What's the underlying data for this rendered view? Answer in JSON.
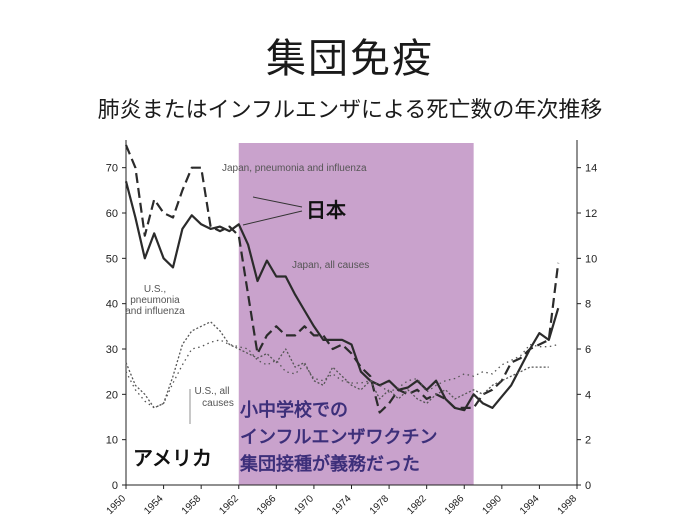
{
  "title": "集団免疫",
  "subtitle": "肺炎またはインフルエンザによる死亡数の年次推移",
  "colors": {
    "shade": "#c9a2cc",
    "japan": "#2b2b2b",
    "us": "#555555",
    "note_text": "#3d2f7a"
  },
  "annotations": {
    "japan_pi": "Japan, pneumonia and influenza",
    "japan_all": "Japan, all causes",
    "us_pi": [
      "U.S.,",
      "pneumonia",
      "and influenza"
    ],
    "us_all": [
      "U.S., all",
      "causes"
    ],
    "nihon": "日本",
    "america": "アメリカ",
    "policy_note": [
      "小中学校での",
      "インフルエンザワクチン",
      "集団接種が義務だった"
    ]
  },
  "chart_data": {
    "type": "line",
    "xlim": [
      1950,
      1998
    ],
    "x_ticks": [
      "1950",
      "1954",
      "1958",
      "1962",
      "1966",
      "1970",
      "1974",
      "1978",
      "1982",
      "1986",
      "1990",
      "1994",
      "1998"
    ],
    "left_axis": {
      "ylim": [
        0,
        75
      ],
      "ticks": [
        "0",
        "10",
        "20",
        "30",
        "40",
        "50",
        "60",
        "70"
      ]
    },
    "right_axis": {
      "ylim": [
        0,
        15
      ],
      "ticks": [
        "0",
        "2",
        "4",
        "6",
        "8",
        "10",
        "12",
        "14"
      ]
    },
    "shaded_period": [
      1962,
      1987
    ],
    "grid": false,
    "series": [
      {
        "name": "Japan, pneumonia and influenza",
        "axis": "left",
        "style": "dashed-thick",
        "x": [
          1950,
          1951,
          1952,
          1953,
          1954,
          1955,
          1956,
          1957,
          1958,
          1959,
          1960,
          1961,
          1962,
          1963,
          1964,
          1965,
          1966,
          1967,
          1968,
          1969,
          1970,
          1971,
          1972,
          1973,
          1974,
          1975,
          1976,
          1977,
          1978,
          1979,
          1980,
          1981,
          1982,
          1983,
          1984,
          1985,
          1986,
          1987,
          1988,
          1989,
          1990,
          1991,
          1992,
          1993,
          1994,
          1995,
          1996
        ],
        "y": [
          75,
          70,
          55,
          63,
          60,
          59,
          65,
          70,
          70,
          57,
          56,
          57,
          55,
          42,
          29,
          33,
          35,
          33,
          33,
          35,
          33,
          33,
          30,
          31,
          29,
          26,
          24,
          16,
          18,
          21,
          20,
          21,
          19,
          20,
          19,
          17,
          17,
          17,
          20,
          21,
          23,
          27,
          28,
          30,
          31,
          32,
          49
        ]
      },
      {
        "name": "Japan, all causes",
        "axis": "right",
        "style": "solid-thick",
        "x": [
          1950,
          1951,
          1952,
          1953,
          1954,
          1955,
          1956,
          1957,
          1958,
          1959,
          1960,
          1961,
          1962,
          1963,
          1964,
          1965,
          1966,
          1967,
          1968,
          1969,
          1970,
          1971,
          1972,
          1973,
          1974,
          1975,
          1976,
          1977,
          1978,
          1979,
          1980,
          1981,
          1982,
          1983,
          1984,
          1985,
          1986,
          1987,
          1988,
          1989,
          1990,
          1991,
          1992,
          1993,
          1994,
          1995,
          1996
        ],
        "y": [
          13.4,
          11.8,
          10.0,
          11.1,
          10.0,
          9.6,
          11.3,
          11.9,
          11.5,
          11.3,
          11.4,
          11.2,
          11.5,
          10.6,
          9.0,
          9.9,
          9.2,
          9.2,
          8.4,
          7.7,
          7.0,
          6.4,
          6.4,
          6.4,
          6.2,
          5.0,
          4.6,
          4.4,
          4.6,
          4.2,
          4.3,
          4.6,
          4.2,
          4.6,
          3.8,
          3.4,
          3.3,
          4.0,
          3.6,
          3.4,
          3.9,
          4.4,
          5.2,
          6.0,
          6.7,
          6.4,
          7.8
        ]
      },
      {
        "name": "U.S., pneumonia and influenza",
        "axis": "left",
        "style": "dotted-dense",
        "x": [
          1950,
          1951,
          1952,
          1953,
          1954,
          1955,
          1956,
          1957,
          1958,
          1959,
          1960,
          1961,
          1962,
          1963,
          1964,
          1965,
          1966,
          1967,
          1968,
          1969,
          1970,
          1971,
          1972,
          1973,
          1974,
          1975,
          1976,
          1977,
          1978,
          1979,
          1980,
          1981,
          1982,
          1983,
          1984,
          1985,
          1986,
          1987,
          1988,
          1989,
          1990,
          1991,
          1992,
          1993,
          1994,
          1995
        ],
        "y": [
          27,
          22,
          20,
          17,
          18,
          24,
          31,
          34,
          35,
          36,
          34,
          31,
          30,
          29,
          28,
          29,
          27,
          30,
          26,
          27,
          23,
          22,
          26,
          24,
          22,
          21,
          23,
          19,
          21,
          19,
          21,
          19,
          18,
          20,
          21,
          19,
          20,
          21,
          20,
          22,
          23,
          24,
          25,
          26,
          26,
          26
        ]
      },
      {
        "name": "U.S., all causes",
        "axis": "right",
        "style": "dotted-sparse",
        "x": [
          1950,
          1951,
          1952,
          1953,
          1954,
          1955,
          1956,
          1957,
          1958,
          1959,
          1960,
          1961,
          1962,
          1963,
          1964,
          1965,
          1966,
          1967,
          1968,
          1969,
          1970,
          1971,
          1972,
          1973,
          1974,
          1975,
          1976,
          1977,
          1978,
          1979,
          1980,
          1981,
          1982,
          1983,
          1984,
          1985,
          1986,
          1987,
          1988,
          1989,
          1990,
          1991,
          1992,
          1993,
          1994,
          1995,
          1996
        ],
        "y": [
          5.0,
          4.2,
          3.7,
          3.4,
          3.6,
          4.5,
          5.3,
          6.0,
          6.1,
          6.3,
          6.4,
          6.2,
          6.1,
          6.0,
          5.5,
          5.3,
          5.5,
          5.0,
          4.9,
          5.3,
          4.7,
          4.6,
          4.9,
          4.6,
          4.5,
          4.5,
          4.6,
          4.4,
          4.1,
          4.3,
          4.6,
          4.7,
          4.1,
          4.4,
          4.6,
          4.7,
          4.9,
          4.8,
          5.0,
          4.9,
          5.3,
          5.5,
          5.7,
          6.2,
          6.1,
          6.1,
          6.2
        ]
      }
    ]
  }
}
